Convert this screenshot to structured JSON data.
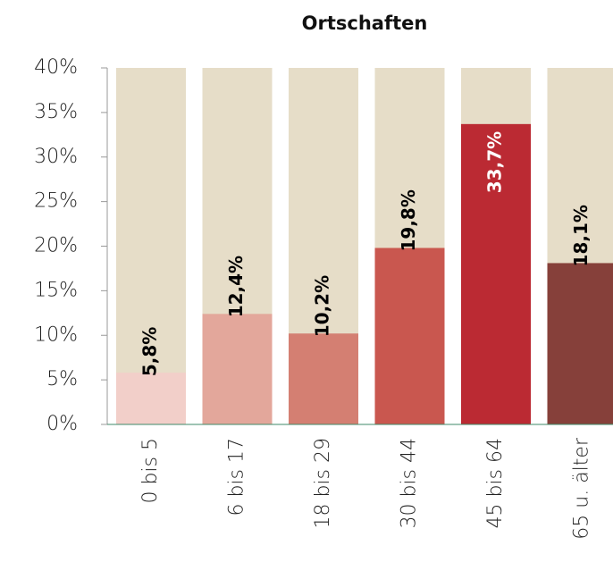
{
  "chart_data": {
    "type": "bar",
    "title": "Ortschaften",
    "categories": [
      "0 bis 5",
      "6 bis 17",
      "18 bis 29",
      "30 bis 44",
      "45 bis 64",
      "65 u. älter"
    ],
    "values": [
      5.8,
      12.4,
      10.2,
      19.8,
      33.7,
      18.1
    ],
    "value_labels": [
      "5,8%",
      "12,4%",
      "10,2%",
      "19,8%",
      "33,7%",
      "18,1%"
    ],
    "colors": [
      "#f2cfc9",
      "#e3a79b",
      "#d47f72",
      "#c9574f",
      "#bb2a33",
      "#86403a"
    ],
    "value_label_colors": [
      "#000000",
      "#000000",
      "#000000",
      "#000000",
      "#ffffff",
      "#000000"
    ],
    "background_color": "#e6ddc8",
    "ylim": [
      0,
      40
    ],
    "yticks": [
      {
        "value": 0,
        "label": "0%"
      },
      {
        "value": 5,
        "label": "5%"
      },
      {
        "value": 10,
        "label": "10%"
      },
      {
        "value": 15,
        "label": "15%"
      },
      {
        "value": 20,
        "label": "20%"
      },
      {
        "value": 25,
        "label": "25%"
      },
      {
        "value": 30,
        "label": "30%"
      },
      {
        "value": 35,
        "label": "35%"
      },
      {
        "value": 40,
        "label": "40%"
      }
    ]
  }
}
